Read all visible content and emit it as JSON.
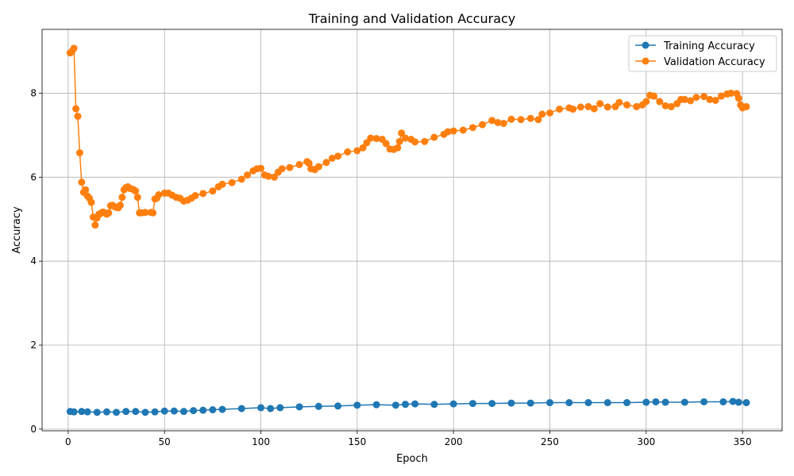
{
  "chart_data": {
    "type": "line",
    "title": "Training and Validation Accuracy",
    "xlabel": "Epoch",
    "ylabel": "Accuracy",
    "xlim": [
      -13.55,
      370.55
    ],
    "ylim": [
      -0.04,
      9.52
    ],
    "xticks": [
      0,
      50,
      100,
      150,
      200,
      250,
      300,
      350
    ],
    "yticks": [
      0,
      2,
      4,
      6,
      8
    ],
    "grid": true,
    "legend_position": "top-right",
    "markers": true,
    "series": [
      {
        "name": "Training Accuracy",
        "color": "#1f77b4",
        "points": [
          [
            1,
            0.42
          ],
          [
            3,
            0.41
          ],
          [
            7,
            0.42
          ],
          [
            10,
            0.41
          ],
          [
            15,
            0.4
          ],
          [
            20,
            0.41
          ],
          [
            25,
            0.4
          ],
          [
            30,
            0.42
          ],
          [
            35,
            0.42
          ],
          [
            40,
            0.4
          ],
          [
            45,
            0.41
          ],
          [
            50,
            0.43
          ],
          [
            55,
            0.43
          ],
          [
            60,
            0.42
          ],
          [
            65,
            0.44
          ],
          [
            70,
            0.45
          ],
          [
            75,
            0.46
          ],
          [
            80,
            0.47
          ],
          [
            90,
            0.49
          ],
          [
            100,
            0.51
          ],
          [
            105,
            0.49
          ],
          [
            110,
            0.51
          ],
          [
            120,
            0.53
          ],
          [
            130,
            0.54
          ],
          [
            140,
            0.55
          ],
          [
            150,
            0.57
          ],
          [
            160,
            0.58
          ],
          [
            170,
            0.57
          ],
          [
            175,
            0.59
          ],
          [
            180,
            0.6
          ],
          [
            190,
            0.59
          ],
          [
            200,
            0.6
          ],
          [
            210,
            0.61
          ],
          [
            220,
            0.61
          ],
          [
            230,
            0.62
          ],
          [
            240,
            0.62
          ],
          [
            250,
            0.63
          ],
          [
            260,
            0.63
          ],
          [
            270,
            0.63
          ],
          [
            280,
            0.63
          ],
          [
            290,
            0.63
          ],
          [
            300,
            0.64
          ],
          [
            305,
            0.65
          ],
          [
            310,
            0.64
          ],
          [
            320,
            0.64
          ],
          [
            330,
            0.65
          ],
          [
            340,
            0.65
          ],
          [
            345,
            0.66
          ],
          [
            348,
            0.64
          ],
          [
            352,
            0.63
          ]
        ]
      },
      {
        "name": "Validation Accuracy",
        "color": "#ff7f0e",
        "points": [
          [
            1,
            8.96
          ],
          [
            2,
            9.0
          ],
          [
            3,
            9.07
          ],
          [
            4,
            7.63
          ],
          [
            5,
            7.45
          ],
          [
            6,
            6.58
          ],
          [
            7,
            5.88
          ],
          [
            8,
            5.64
          ],
          [
            9,
            5.7
          ],
          [
            10,
            5.55
          ],
          [
            11,
            5.5
          ],
          [
            12,
            5.4
          ],
          [
            13,
            5.05
          ],
          [
            14,
            4.86
          ],
          [
            15,
            5.03
          ],
          [
            16,
            5.12
          ],
          [
            17,
            5.14
          ],
          [
            18,
            5.17
          ],
          [
            19,
            5.15
          ],
          [
            20,
            5.12
          ],
          [
            21,
            5.15
          ],
          [
            22,
            5.32
          ],
          [
            23,
            5.33
          ],
          [
            24,
            5.3
          ],
          [
            25,
            5.28
          ],
          [
            26,
            5.27
          ],
          [
            27,
            5.33
          ],
          [
            28,
            5.52
          ],
          [
            29,
            5.7
          ],
          [
            30,
            5.75
          ],
          [
            31,
            5.77
          ],
          [
            32,
            5.73
          ],
          [
            33,
            5.72
          ],
          [
            34,
            5.7
          ],
          [
            35,
            5.67
          ],
          [
            36,
            5.52
          ],
          [
            37,
            5.15
          ],
          [
            38,
            5.15
          ],
          [
            40,
            5.16
          ],
          [
            43,
            5.16
          ],
          [
            44,
            5.15
          ],
          [
            45,
            5.48
          ],
          [
            46,
            5.5
          ],
          [
            47,
            5.58
          ],
          [
            50,
            5.62
          ],
          [
            52,
            5.62
          ],
          [
            54,
            5.57
          ],
          [
            56,
            5.52
          ],
          [
            58,
            5.5
          ],
          [
            60,
            5.43
          ],
          [
            62,
            5.45
          ],
          [
            64,
            5.5
          ],
          [
            66,
            5.56
          ],
          [
            70,
            5.61
          ],
          [
            75,
            5.67
          ],
          [
            78,
            5.77
          ],
          [
            80,
            5.83
          ],
          [
            85,
            5.87
          ],
          [
            90,
            5.95
          ],
          [
            93,
            6.05
          ],
          [
            96,
            6.15
          ],
          [
            98,
            6.2
          ],
          [
            100,
            6.21
          ],
          [
            102,
            6.05
          ],
          [
            104,
            6.02
          ],
          [
            107,
            6.0
          ],
          [
            109,
            6.12
          ],
          [
            111,
            6.2
          ],
          [
            115,
            6.23
          ],
          [
            120,
            6.3
          ],
          [
            124,
            6.37
          ],
          [
            125,
            6.33
          ],
          [
            126,
            6.2
          ],
          [
            128,
            6.18
          ],
          [
            130,
            6.25
          ],
          [
            134,
            6.35
          ],
          [
            137,
            6.45
          ],
          [
            140,
            6.5
          ],
          [
            145,
            6.6
          ],
          [
            150,
            6.63
          ],
          [
            153,
            6.7
          ],
          [
            155,
            6.82
          ],
          [
            157,
            6.93
          ],
          [
            160,
            6.92
          ],
          [
            163,
            6.9
          ],
          [
            165,
            6.8
          ],
          [
            167,
            6.67
          ],
          [
            169,
            6.66
          ],
          [
            171,
            6.7
          ],
          [
            172,
            6.85
          ],
          [
            173,
            7.05
          ],
          [
            175,
            6.93
          ],
          [
            178,
            6.9
          ],
          [
            180,
            6.84
          ],
          [
            185,
            6.85
          ],
          [
            190,
            6.95
          ],
          [
            195,
            7.02
          ],
          [
            197,
            7.08
          ],
          [
            200,
            7.1
          ],
          [
            205,
            7.12
          ],
          [
            210,
            7.18
          ],
          [
            215,
            7.25
          ],
          [
            220,
            7.35
          ],
          [
            223,
            7.3
          ],
          [
            226,
            7.28
          ],
          [
            230,
            7.38
          ],
          [
            235,
            7.37
          ],
          [
            240,
            7.4
          ],
          [
            244,
            7.37
          ],
          [
            246,
            7.5
          ],
          [
            250,
            7.53
          ],
          [
            255,
            7.62
          ],
          [
            260,
            7.65
          ],
          [
            262,
            7.62
          ],
          [
            266,
            7.67
          ],
          [
            270,
            7.68
          ],
          [
            273,
            7.63
          ],
          [
            276,
            7.75
          ],
          [
            280,
            7.67
          ],
          [
            284,
            7.68
          ],
          [
            286,
            7.78
          ],
          [
            290,
            7.72
          ],
          [
            295,
            7.68
          ],
          [
            298,
            7.72
          ],
          [
            300,
            7.8
          ],
          [
            302,
            7.95
          ],
          [
            304,
            7.93
          ],
          [
            307,
            7.8
          ],
          [
            310,
            7.7
          ],
          [
            313,
            7.68
          ],
          [
            316,
            7.75
          ],
          [
            318,
            7.85
          ],
          [
            320,
            7.85
          ],
          [
            323,
            7.82
          ],
          [
            326,
            7.9
          ],
          [
            330,
            7.92
          ],
          [
            333,
            7.85
          ],
          [
            336,
            7.83
          ],
          [
            339,
            7.93
          ],
          [
            342,
            7.98
          ],
          [
            344,
            8.0
          ],
          [
            347,
            7.99
          ],
          [
            348,
            7.88
          ],
          [
            349,
            7.72
          ],
          [
            350,
            7.65
          ],
          [
            352,
            7.68
          ]
        ]
      }
    ]
  }
}
